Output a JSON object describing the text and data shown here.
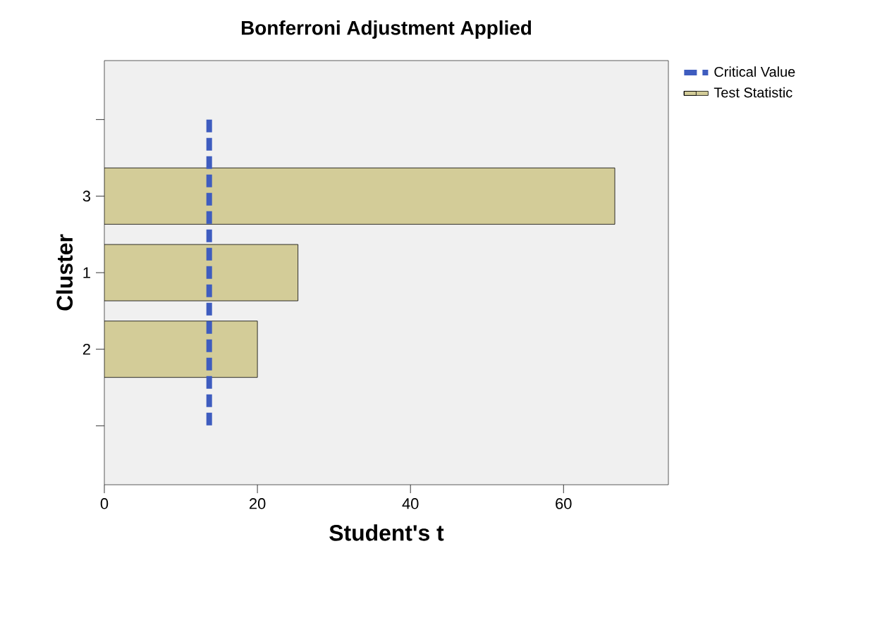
{
  "chart_data": {
    "type": "bar",
    "orientation": "horizontal",
    "title": "Bonferroni Adjustment Applied",
    "xlabel": "Student's t",
    "ylabel": "Cluster",
    "categories": [
      null,
      "3",
      "1",
      "2",
      null
    ],
    "series": [
      {
        "name": "Test Statistic",
        "color": "#d3cc98",
        "values": [
          null,
          66.7,
          25.3,
          20.0,
          null
        ]
      }
    ],
    "xlim": [
      0,
      73.7
    ],
    "xticks": [
      0,
      20,
      40,
      60
    ],
    "ref_lines": [
      {
        "axis": "x",
        "value": 13.7,
        "label": "Critical Value",
        "color": "#3e5cbf",
        "line_style": "dashed"
      }
    ],
    "legend": "top right"
  }
}
